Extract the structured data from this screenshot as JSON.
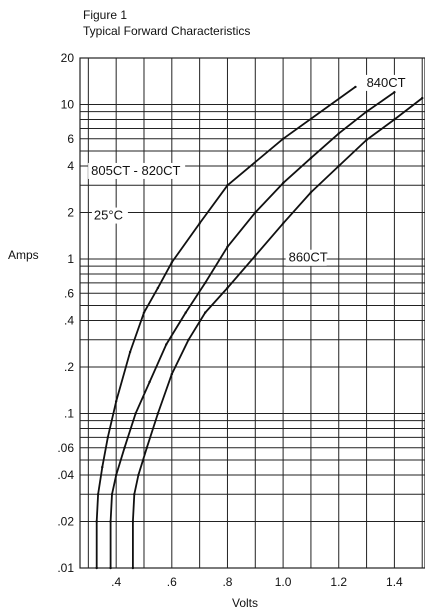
{
  "chart_data": {
    "type": "line",
    "title": "Typical Forward Characteristics",
    "figure_label": "Figure 1",
    "xlabel": "Volts",
    "ylabel": "Amps",
    "xlim": [
      0.27,
      1.51
    ],
    "ylim": [
      0.01,
      20
    ],
    "y_scale": "log",
    "grid": true,
    "x_ticks": [
      {
        "value": 0.4,
        "label": ".4"
      },
      {
        "value": 0.6,
        "label": ".6"
      },
      {
        "value": 0.8,
        "label": ".8"
      },
      {
        "value": 1.0,
        "label": "1.0"
      },
      {
        "value": 1.2,
        "label": "1.2"
      },
      {
        "value": 1.4,
        "label": "1.4"
      }
    ],
    "y_ticks": [
      {
        "value": 0.01,
        "label": ".01"
      },
      {
        "value": 0.02,
        "label": ".02"
      },
      {
        "value": 0.04,
        "label": ".04"
      },
      {
        "value": 0.06,
        "label": ".06"
      },
      {
        "value": 0.1,
        "label": ".1"
      },
      {
        "value": 0.2,
        "label": ".2"
      },
      {
        "value": 0.4,
        "label": ".4"
      },
      {
        "value": 0.6,
        "label": ".6"
      },
      {
        "value": 1,
        "label": "1"
      },
      {
        "value": 2,
        "label": "2"
      },
      {
        "value": 4,
        "label": "4"
      },
      {
        "value": 6,
        "label": "6"
      },
      {
        "value": 10,
        "label": "10"
      },
      {
        "value": 20,
        "label": "20"
      }
    ],
    "annotations": [
      {
        "text": "25°C",
        "x": 0.32,
        "y": 1.8
      }
    ],
    "series": [
      {
        "name": "805CT - 820CT",
        "color": "#111111",
        "label_pos": {
          "x": 0.31,
          "y": 3.5
        },
        "x": [
          0.33,
          0.33,
          0.335,
          0.35,
          0.37,
          0.4,
          0.45,
          0.5,
          0.55,
          0.6,
          0.7,
          0.8,
          1.0,
          1.26
        ],
        "y": [
          0.01,
          0.02,
          0.03,
          0.045,
          0.07,
          0.12,
          0.25,
          0.45,
          0.65,
          0.95,
          1.7,
          3.0,
          6.0,
          13.0
        ]
      },
      {
        "name": "840CT",
        "color": "#111111",
        "label_pos": {
          "x": 1.3,
          "y": 13.0
        },
        "x": [
          0.38,
          0.38,
          0.385,
          0.4,
          0.43,
          0.47,
          0.52,
          0.58,
          0.65,
          0.72,
          0.8,
          0.9,
          1.0,
          1.1,
          1.2,
          1.3,
          1.4
        ],
        "y": [
          0.01,
          0.02,
          0.03,
          0.04,
          0.06,
          0.1,
          0.16,
          0.28,
          0.45,
          0.7,
          1.2,
          2.0,
          3.1,
          4.5,
          6.5,
          9.0,
          12.0
        ]
      },
      {
        "name": "860CT",
        "color": "#111111",
        "label_pos": {
          "x": 1.02,
          "y": 0.96
        },
        "x": [
          0.46,
          0.46,
          0.465,
          0.48,
          0.51,
          0.55,
          0.6,
          0.66,
          0.72,
          0.8,
          0.9,
          1.0,
          1.1,
          1.2,
          1.3,
          1.4,
          1.5
        ],
        "y": [
          0.01,
          0.02,
          0.03,
          0.04,
          0.06,
          0.1,
          0.18,
          0.3,
          0.45,
          0.65,
          1.05,
          1.7,
          2.7,
          4.0,
          5.9,
          8.0,
          11.0
        ]
      }
    ]
  }
}
